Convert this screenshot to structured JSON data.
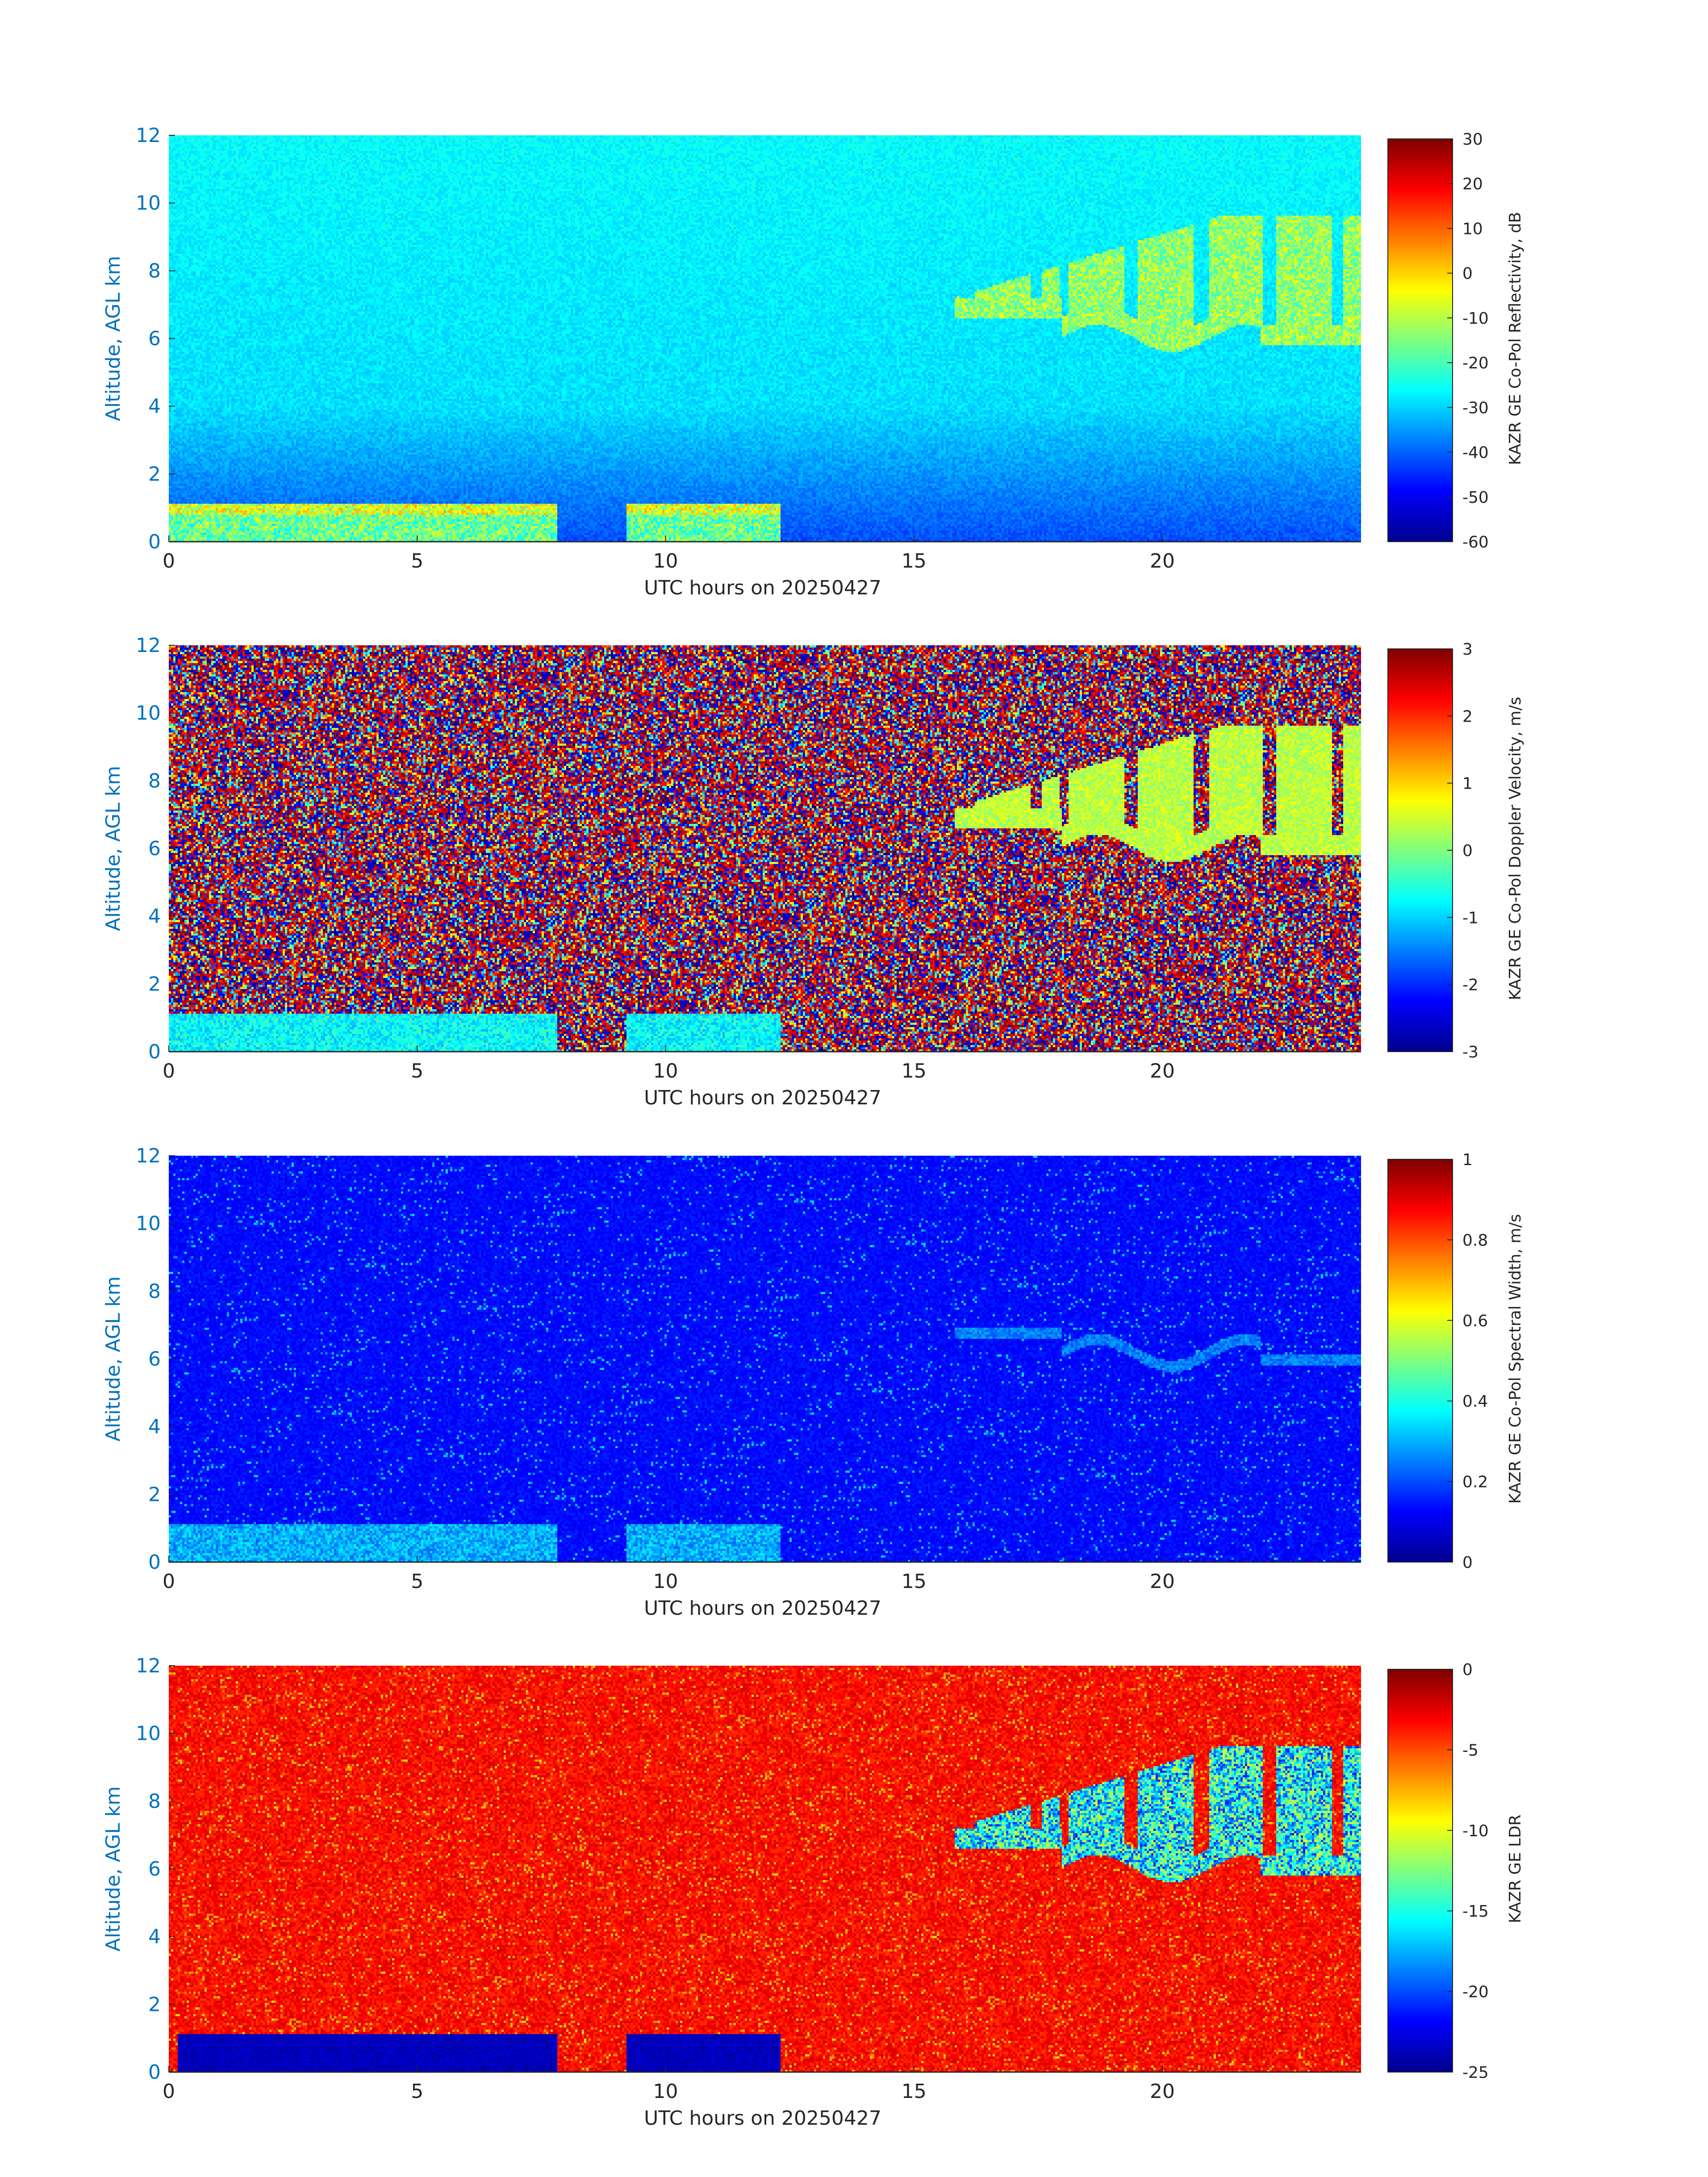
{
  "colors": {
    "jet_stops": [
      "#00008F",
      "#0000FF",
      "#00FFFF",
      "#FFFF00",
      "#FF0000",
      "#800000"
    ],
    "altitude_axis": "#0072BD",
    "text": "#262626"
  },
  "chart_data": [
    {
      "type": "heatmap",
      "title": "",
      "xlabel": "UTC hours on 20250427",
      "ylabel": "Altitude, AGL km",
      "xlim": [
        0,
        24
      ],
      "ylim": [
        0,
        12
      ],
      "xticks": [
        0,
        5,
        10,
        15,
        20
      ],
      "yticks": [
        0,
        2,
        4,
        6,
        8,
        10,
        12
      ],
      "colorbar": {
        "label": "KAZR GE Co-Pol Reflectivity, dB",
        "range": [
          -60,
          30
        ],
        "ticks": [
          -60,
          -50,
          -40,
          -30,
          -20,
          -10,
          0,
          10,
          20,
          30
        ]
      }
    },
    {
      "type": "heatmap",
      "title": "",
      "xlabel": "UTC hours on 20250427",
      "ylabel": "Altitude, AGL km",
      "xlim": [
        0,
        24
      ],
      "ylim": [
        0,
        12
      ],
      "xticks": [
        0,
        5,
        10,
        15,
        20
      ],
      "yticks": [
        0,
        2,
        4,
        6,
        8,
        10,
        12
      ],
      "colorbar": {
        "label": "KAZR GE Co-Pol Doppler Velocity, m/s",
        "range": [
          -3,
          3
        ],
        "ticks": [
          -3,
          -2,
          -1,
          0,
          1,
          2,
          3
        ]
      }
    },
    {
      "type": "heatmap",
      "title": "",
      "xlabel": "UTC hours on 20250427",
      "ylabel": "Altitude, AGL km",
      "xlim": [
        0,
        24
      ],
      "ylim": [
        0,
        12
      ],
      "xticks": [
        0,
        5,
        10,
        15,
        20
      ],
      "yticks": [
        0,
        2,
        4,
        6,
        8,
        10,
        12
      ],
      "colorbar": {
        "label": "KAZR GE Co-Pol Spectral Width, m/s",
        "range": [
          0,
          1
        ],
        "ticks": [
          0,
          0.2,
          0.4,
          0.6,
          0.8,
          1
        ]
      }
    },
    {
      "type": "heatmap",
      "title": "",
      "xlabel": "UTC hours on 20250427",
      "ylabel": "Altitude, AGL km",
      "xlim": [
        0,
        24
      ],
      "ylim": [
        0,
        12
      ],
      "xticks": [
        0,
        5,
        10,
        15,
        20
      ],
      "yticks": [
        0,
        2,
        4,
        6,
        8,
        10,
        12
      ],
      "colorbar": {
        "label": "KAZR GE LDR",
        "range": [
          -25,
          0
        ],
        "ticks": [
          -25,
          -20,
          -15,
          -10,
          -5,
          0
        ]
      }
    }
  ]
}
